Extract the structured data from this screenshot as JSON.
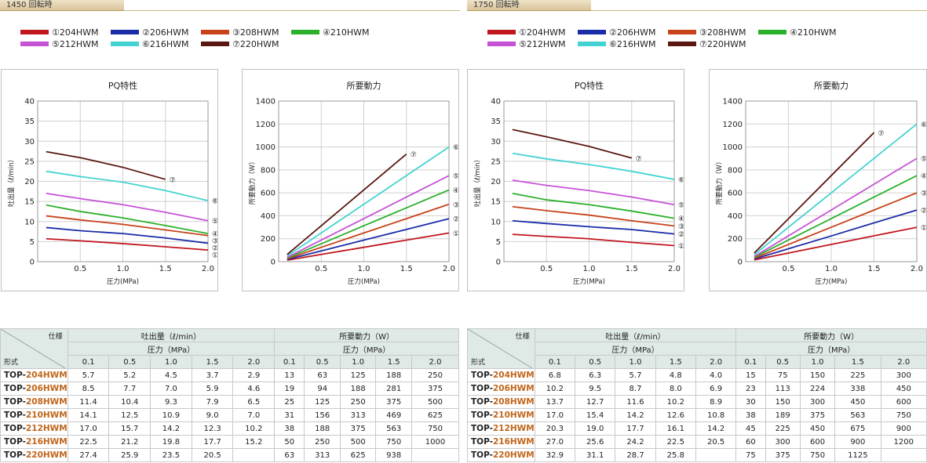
{
  "panels": [
    {
      "tab": "1450 回転時",
      "legend": [
        "①204HWM",
        "②206HWM",
        "③208HWM",
        "④210HWM",
        "⑤212HWM",
        "⑥216HWM",
        "⑦220HWM"
      ],
      "table": {
        "spec": "仕様",
        "form": "形式",
        "flow_header": "吐出量（ℓ/min）",
        "power_header": "所要動力（W）",
        "pressure_header": "圧力（MPa）",
        "pressures": [
          "0.1",
          "0.5",
          "1.0",
          "1.5",
          "2.0"
        ],
        "rows": [
          {
            "pre": "TOP-",
            "suf": "204HWM",
            "flow": [
              "5.7",
              "5.2",
              "4.5",
              "3.7",
              "2.9"
            ],
            "power": [
              "13",
              "63",
              "125",
              "188",
              "250"
            ]
          },
          {
            "pre": "TOP-",
            "suf": "206HWM",
            "flow": [
              "8.5",
              "7.7",
              "7.0",
              "5.9",
              "4.6"
            ],
            "power": [
              "19",
              "94",
              "188",
              "281",
              "375"
            ]
          },
          {
            "pre": "TOP-",
            "suf": "208HWM",
            "flow": [
              "11.4",
              "10.4",
              "9.3",
              "7.9",
              "6.5"
            ],
            "power": [
              "25",
              "125",
              "250",
              "375",
              "500"
            ]
          },
          {
            "pre": "TOP-",
            "suf": "210HWM",
            "flow": [
              "14.1",
              "12.5",
              "10.9",
              "9.0",
              "7.0"
            ],
            "power": [
              "31",
              "156",
              "313",
              "469",
              "625"
            ]
          },
          {
            "pre": "TOP-",
            "suf": "212HWM",
            "flow": [
              "17.0",
              "15.7",
              "14.2",
              "12.3",
              "10.2"
            ],
            "power": [
              "38",
              "188",
              "375",
              "563",
              "750"
            ]
          },
          {
            "pre": "TOP-",
            "suf": "216HWM",
            "flow": [
              "22.5",
              "21.2",
              "19.8",
              "17.7",
              "15.2"
            ],
            "power": [
              "50",
              "250",
              "500",
              "750",
              "1000"
            ]
          },
          {
            "pre": "TOP-",
            "suf": "220HWM",
            "flow": [
              "27.4",
              "25.9",
              "23.5",
              "20.5",
              ""
            ],
            "power": [
              "63",
              "313",
              "625",
              "938",
              ""
            ]
          }
        ]
      }
    },
    {
      "tab": "1750 回転時",
      "legend": [
        "①204HWM",
        "②206HWM",
        "③208HWM",
        "④210HWM",
        "⑤212HWM",
        "⑥216HWM",
        "⑦220HWM"
      ],
      "table": {
        "spec": "仕様",
        "form": "形式",
        "flow_header": "吐出量（ℓ/min）",
        "power_header": "所要動力（W）",
        "pressure_header": "圧力（MPa）",
        "pressures": [
          "0.1",
          "0.5",
          "1.0",
          "1.5",
          "2.0"
        ],
        "rows": [
          {
            "pre": "TOP-",
            "suf": "204HWM",
            "flow": [
              "6.8",
              "6.3",
              "5.7",
              "4.8",
              "4.0"
            ],
            "power": [
              "15",
              "75",
              "150",
              "225",
              "300"
            ]
          },
          {
            "pre": "TOP-",
            "suf": "206HWM",
            "flow": [
              "10.2",
              "9.5",
              "8.7",
              "8.0",
              "6.9"
            ],
            "power": [
              "23",
              "113",
              "224",
              "338",
              "450"
            ]
          },
          {
            "pre": "TOP-",
            "suf": "208HWM",
            "flow": [
              "13.7",
              "12.7",
              "11.6",
              "10.2",
              "8.9"
            ],
            "power": [
              "30",
              "150",
              "300",
              "450",
              "600"
            ]
          },
          {
            "pre": "TOP-",
            "suf": "210HWM",
            "flow": [
              "17.0",
              "15.4",
              "14.2",
              "12.6",
              "10.8"
            ],
            "power": [
              "38",
              "189",
              "375",
              "563",
              "750"
            ]
          },
          {
            "pre": "TOP-",
            "suf": "212HWM",
            "flow": [
              "20.3",
              "19.0",
              "17.7",
              "16.1",
              "14.2"
            ],
            "power": [
              "45",
              "225",
              "450",
              "675",
              "900"
            ]
          },
          {
            "pre": "TOP-",
            "suf": "216HWM",
            "flow": [
              "27.0",
              "25.6",
              "24.2",
              "22.5",
              "20.5"
            ],
            "power": [
              "60",
              "300",
              "600",
              "900",
              "1200"
            ]
          },
          {
            "pre": "TOP-",
            "suf": "220HWM",
            "flow": [
              "32.9",
              "31.1",
              "28.7",
              "25.8",
              ""
            ],
            "power": [
              "75",
              "375",
              "750",
              "1125",
              ""
            ]
          }
        ]
      }
    }
  ],
  "colors": [
    "#c0161e",
    "#1a2ca8",
    "#c8421a",
    "#2bb02b",
    "#c653d6",
    "#44d2d2",
    "#5a1710"
  ],
  "chart_data": [
    {
      "type": "line",
      "title": "PQ特性",
      "xlabel": "圧力(MPa)",
      "ylabel": "吐出量（ℓ/min）",
      "xlim": [
        0,
        2.0
      ],
      "ylim": [
        0,
        40
      ],
      "xticks": [
        "0.5",
        "1.0",
        "1.5",
        "2.0"
      ],
      "yticks": [
        "0",
        "5",
        "10",
        "15",
        "20",
        "25",
        "30",
        "35",
        "40"
      ],
      "x": [
        0.1,
        0.5,
        1.0,
        1.5,
        2.0
      ],
      "series": [
        {
          "marker": "①",
          "values": [
            5.7,
            5.2,
            4.5,
            3.7,
            2.9
          ]
        },
        {
          "marker": "②",
          "values": [
            8.5,
            7.7,
            7.0,
            5.9,
            4.6
          ]
        },
        {
          "marker": "③",
          "values": [
            11.4,
            10.4,
            9.3,
            7.9,
            6.5
          ]
        },
        {
          "marker": "④",
          "values": [
            14.1,
            12.5,
            10.9,
            9.0,
            7.0
          ]
        },
        {
          "marker": "⑤",
          "values": [
            17.0,
            15.7,
            14.2,
            12.3,
            10.2
          ]
        },
        {
          "marker": "⑥",
          "values": [
            22.5,
            21.2,
            19.8,
            17.7,
            15.2
          ]
        },
        {
          "marker": "⑦",
          "values": [
            27.4,
            25.9,
            23.5,
            20.5,
            null
          ]
        }
      ]
    },
    {
      "type": "line",
      "title": "所要動力",
      "xlabel": "圧力(MPa)",
      "ylabel": "所要動力（W）",
      "xlim": [
        0,
        2.0
      ],
      "ylim": [
        0,
        1400
      ],
      "xticks": [
        "0.5",
        "1.0",
        "1.5",
        "2.0"
      ],
      "yticks": [
        "0",
        "200",
        "400",
        "600",
        "800",
        "1000",
        "1200",
        "1400"
      ],
      "x": [
        0.1,
        0.5,
        1.0,
        1.5,
        2.0
      ],
      "series": [
        {
          "marker": "①",
          "values": [
            13,
            63,
            125,
            188,
            250
          ]
        },
        {
          "marker": "②",
          "values": [
            19,
            94,
            188,
            281,
            375
          ]
        },
        {
          "marker": "③",
          "values": [
            25,
            125,
            250,
            375,
            500
          ]
        },
        {
          "marker": "④",
          "values": [
            31,
            156,
            313,
            469,
            625
          ]
        },
        {
          "marker": "⑤",
          "values": [
            38,
            188,
            375,
            563,
            750
          ]
        },
        {
          "marker": "⑥",
          "values": [
            50,
            250,
            500,
            750,
            1000
          ]
        },
        {
          "marker": "⑦",
          "values": [
            63,
            313,
            625,
            938,
            null
          ]
        }
      ]
    },
    {
      "type": "line",
      "title": "PQ特性",
      "xlabel": "圧力(MPa)",
      "ylabel": "吐出量（ℓ/min）",
      "xlim": [
        0,
        2.0
      ],
      "ylim": [
        0,
        40
      ],
      "xticks": [
        "0.5",
        "1.0",
        "1.5",
        "2.0"
      ],
      "yticks": [
        "0",
        "5",
        "10",
        "15",
        "20",
        "25",
        "30",
        "35",
        "40"
      ],
      "x": [
        0.1,
        0.5,
        1.0,
        1.5,
        2.0
      ],
      "series": [
        {
          "marker": "①",
          "values": [
            6.8,
            6.3,
            5.7,
            4.8,
            4.0
          ]
        },
        {
          "marker": "②",
          "values": [
            10.2,
            9.5,
            8.7,
            8.0,
            6.9
          ]
        },
        {
          "marker": "③",
          "values": [
            13.7,
            12.7,
            11.6,
            10.2,
            8.9
          ]
        },
        {
          "marker": "④",
          "values": [
            17.0,
            15.4,
            14.2,
            12.6,
            10.8
          ]
        },
        {
          "marker": "⑤",
          "values": [
            20.3,
            19.0,
            17.7,
            16.1,
            14.2
          ]
        },
        {
          "marker": "⑥",
          "values": [
            27.0,
            25.6,
            24.2,
            22.5,
            20.5
          ]
        },
        {
          "marker": "⑦",
          "values": [
            32.9,
            31.1,
            28.7,
            25.8,
            null
          ]
        }
      ]
    },
    {
      "type": "line",
      "title": "所要動力",
      "xlabel": "圧力(MPa)",
      "ylabel": "所要動力（W）",
      "xlim": [
        0,
        2.0
      ],
      "ylim": [
        0,
        1400
      ],
      "xticks": [
        "0.5",
        "1.0",
        "1.5",
        "2.0"
      ],
      "yticks": [
        "0",
        "200",
        "400",
        "600",
        "800",
        "1000",
        "1200",
        "1400"
      ],
      "x": [
        0.1,
        0.5,
        1.0,
        1.5,
        2.0
      ],
      "series": [
        {
          "marker": "①",
          "values": [
            15,
            75,
            150,
            225,
            300
          ]
        },
        {
          "marker": "②",
          "values": [
            23,
            113,
            224,
            338,
            450
          ]
        },
        {
          "marker": "③",
          "values": [
            30,
            150,
            300,
            450,
            600
          ]
        },
        {
          "marker": "④",
          "values": [
            38,
            189,
            375,
            563,
            750
          ]
        },
        {
          "marker": "⑤",
          "values": [
            45,
            225,
            450,
            675,
            900
          ]
        },
        {
          "marker": "⑥",
          "values": [
            60,
            300,
            600,
            900,
            1200
          ]
        },
        {
          "marker": "⑦",
          "values": [
            75,
            375,
            750,
            1125,
            null
          ]
        }
      ]
    }
  ]
}
